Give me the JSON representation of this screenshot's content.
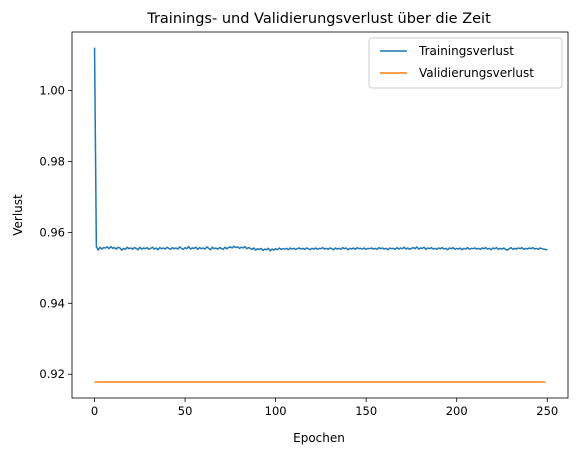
{
  "chart_data": {
    "type": "line",
    "title": "Trainings- und Validierungsverlust über die Zeit",
    "xlabel": "Epochen",
    "ylabel": "Verlust",
    "xlim": [
      -12.45,
      261.45
    ],
    "ylim": [
      0.9133,
      1.0165
    ],
    "x_ticks": [
      0,
      50,
      100,
      150,
      200,
      250
    ],
    "x_tick_labels": [
      "0",
      "50",
      "100",
      "150",
      "200",
      "250"
    ],
    "y_ticks": [
      0.92,
      0.94,
      0.96,
      0.98,
      1.0
    ],
    "y_tick_labels": [
      "0.92",
      "0.94",
      "0.96",
      "0.98",
      "1.00"
    ],
    "grid": false,
    "legend_position": "top-right",
    "series": [
      {
        "name": "Trainingsverlust",
        "color": "#1f77b4",
        "x_start": 0,
        "x_step": 1,
        "values": [
          1.0121,
          0.956,
          0.955,
          0.9558,
          0.9553,
          0.9557,
          0.9556,
          0.9559,
          0.9554,
          0.956,
          0.9555,
          0.9557,
          0.9553,
          0.9558,
          0.9556,
          0.955,
          0.9555,
          0.9552,
          0.9558,
          0.9554,
          0.9556,
          0.9553,
          0.9557,
          0.9555,
          0.9551,
          0.9558,
          0.9553,
          0.9556,
          0.9554,
          0.9557,
          0.9552,
          0.9555,
          0.9558,
          0.9553,
          0.9556,
          0.9551,
          0.9557,
          0.9554,
          0.9556,
          0.9553,
          0.9558,
          0.9555,
          0.9552,
          0.9557,
          0.9554,
          0.9556,
          0.9553,
          0.9559,
          0.9555,
          0.9552,
          0.9557,
          0.9554,
          0.956,
          0.9553,
          0.9556,
          0.9555,
          0.9558,
          0.9552,
          0.9557,
          0.9554,
          0.9556,
          0.9553,
          0.9559,
          0.9555,
          0.9551,
          0.9558,
          0.9554,
          0.9556,
          0.9553,
          0.9557,
          0.9555,
          0.9552,
          0.9558,
          0.9554,
          0.9557,
          0.9559,
          0.9556,
          0.9561,
          0.9557,
          0.9559,
          0.9555,
          0.9558,
          0.9556,
          0.956,
          0.9554,
          0.9557,
          0.9555,
          0.9552,
          0.9556,
          0.955,
          0.9554,
          0.9552,
          0.9555,
          0.9549,
          0.9553,
          0.9551,
          0.9555,
          0.9548,
          0.9553,
          0.955,
          0.9554,
          0.9551,
          0.9556,
          0.9552,
          0.9554,
          0.9553,
          0.9555,
          0.9551,
          0.9556,
          0.9553,
          0.9555,
          0.9552,
          0.9554,
          0.9556,
          0.9553,
          0.9555,
          0.9552,
          0.9556,
          0.9554,
          0.9551,
          0.9555,
          0.9553,
          0.9556,
          0.9552,
          0.9555,
          0.9554,
          0.9557,
          0.9553,
          0.9555,
          0.9552,
          0.9556,
          0.9554,
          0.9551,
          0.9556,
          0.9553,
          0.9555,
          0.9552,
          0.9557,
          0.9554,
          0.9556,
          0.9551,
          0.9555,
          0.9553,
          0.9556,
          0.9552,
          0.9557,
          0.9554,
          0.9555,
          0.9553,
          0.9556,
          0.9552,
          0.9555,
          0.9554,
          0.9556,
          0.9553,
          0.9555,
          0.9552,
          0.9557,
          0.9554,
          0.9556,
          0.9553,
          0.9555,
          0.9551,
          0.9556,
          0.9554,
          0.9555,
          0.9552,
          0.9557,
          0.9553,
          0.9556,
          0.9554,
          0.9558,
          0.9553,
          0.9556,
          0.9552,
          0.9555,
          0.9557,
          0.9554,
          0.9559,
          0.9553,
          0.9556,
          0.9555,
          0.9558,
          0.9552,
          0.9556,
          0.9554,
          0.9557,
          0.9553,
          0.9555,
          0.9552,
          0.9556,
          0.9554,
          0.9557,
          0.9553,
          0.9555,
          0.9551,
          0.9556,
          0.9554,
          0.9557,
          0.9552,
          0.9555,
          0.9553,
          0.9556,
          0.9551,
          0.9555,
          0.9553,
          0.9557,
          0.9552,
          0.9555,
          0.9554,
          0.9556,
          0.9553,
          0.9555,
          0.9552,
          0.9556,
          0.9554,
          0.9557,
          0.9553,
          0.9555,
          0.9551,
          0.9556,
          0.9554,
          0.9557,
          0.9552,
          0.9555,
          0.9553,
          0.9556,
          0.9552,
          0.955,
          0.9554,
          0.9557,
          0.9552,
          0.9555,
          0.9553,
          0.9556,
          0.9554,
          0.9557,
          0.9552,
          0.9555,
          0.9553,
          0.9556,
          0.9554,
          0.9557,
          0.9553,
          0.9555,
          0.9552,
          0.9556,
          0.9554,
          0.9553,
          0.9552,
          0.955
        ]
      },
      {
        "name": "Validierungsverlust",
        "color": "#ff7f0e",
        "x": [
          0,
          249
        ],
        "values": [
          0.9178,
          0.9178
        ]
      }
    ]
  }
}
